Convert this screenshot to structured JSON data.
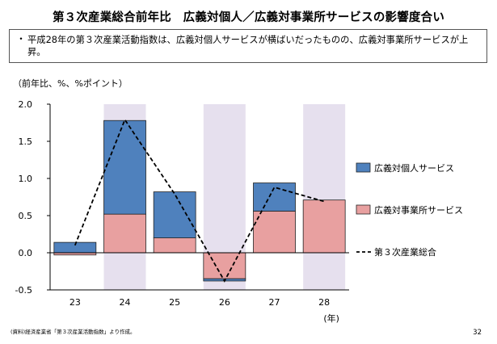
{
  "title": "第３次産業総合前年比　広義対個人／広義対事業所サービスの影響度合い",
  "summary": "平成28年の第３次産業活動指数は、広義対個人サービスが横ばいだったものの、広義対事業所サービスが上昇。",
  "source": "(資料)経済産業省「第３次産業活動指数」より作成。",
  "page_number": "32",
  "chart_data": {
    "type": "bar",
    "stacked": true,
    "unit_label": "（前年比、%、%ポイント）",
    "xlabel": "(年)",
    "categories": [
      "23",
      "24",
      "25",
      "26",
      "27",
      "28"
    ],
    "ylim": [
      -0.5,
      2.0
    ],
    "yticks": [
      "2.0",
      "1.5",
      "1.0",
      "0.5",
      "0.0",
      "-0.5"
    ],
    "ytick_values": [
      2.0,
      1.5,
      1.0,
      0.5,
      0.0,
      -0.5
    ],
    "shaded_categories": [
      "24",
      "26",
      "28"
    ],
    "shade_color": "#e6e0ee",
    "series": [
      {
        "name": "広義対事業所サービス",
        "kind": "bar",
        "color": "#e8a0a0",
        "values": [
          -0.03,
          0.52,
          0.2,
          -0.35,
          0.56,
          0.71
        ]
      },
      {
        "name": "広義対個人サービス",
        "kind": "bar",
        "color": "#4f81bd",
        "values": [
          0.14,
          1.26,
          0.62,
          -0.03,
          0.38,
          0.0
        ]
      },
      {
        "name": "第３次産業総合",
        "kind": "line",
        "style": "dashed",
        "color": "#000000",
        "values": [
          0.1,
          1.79,
          0.79,
          -0.38,
          0.88,
          0.69
        ]
      }
    ],
    "legend_order": [
      "広義対個人サービス",
      "広義対事業所サービス",
      "第３次産業総合"
    ],
    "legend_position": "right",
    "grid": false
  }
}
